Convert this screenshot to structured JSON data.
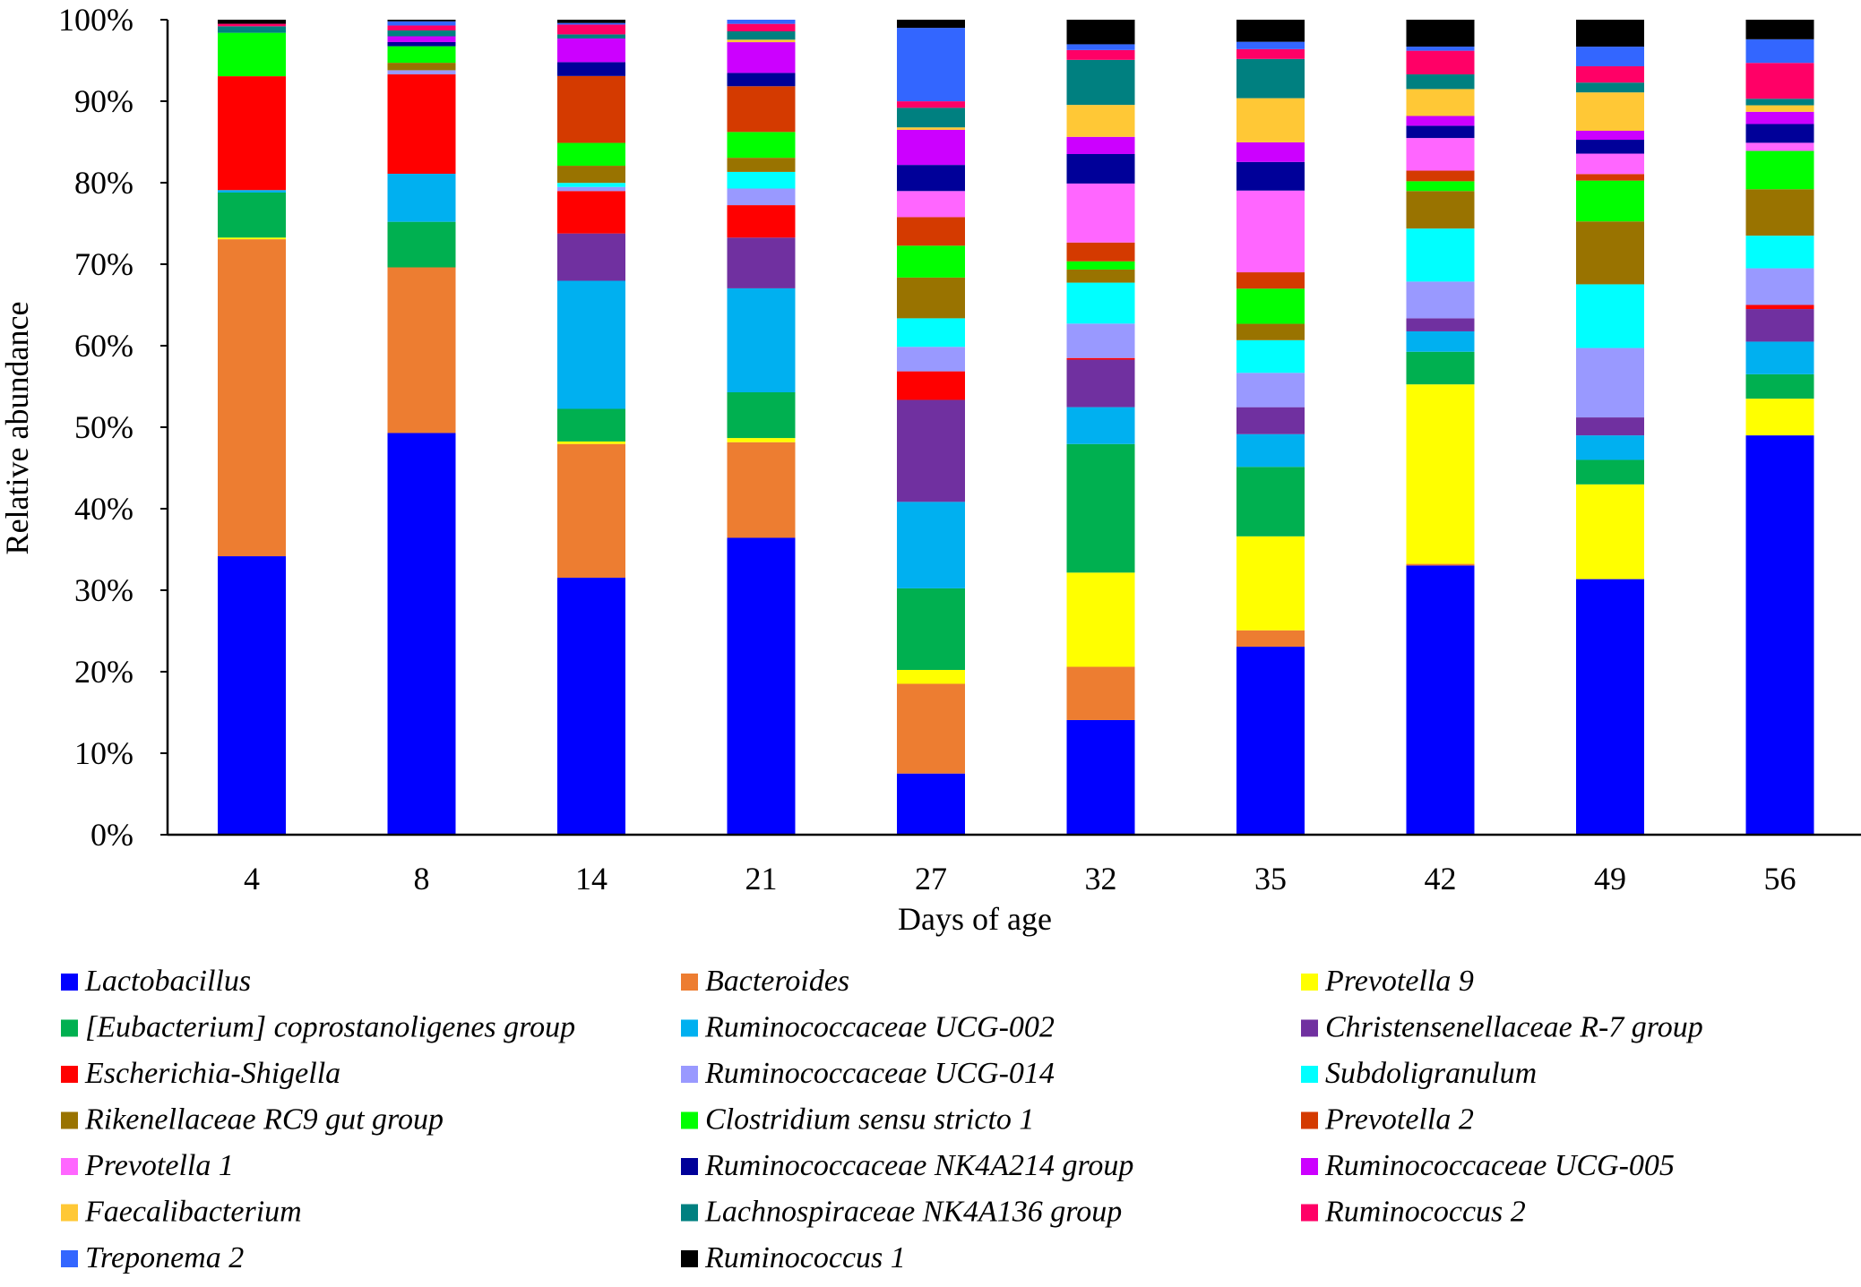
{
  "chart_data": {
    "type": "bar",
    "stacked": true,
    "title": "",
    "xlabel": "Days of age",
    "ylabel": "Relative abundance",
    "ylim": [
      0,
      100
    ],
    "yticks": [
      "0%",
      "10%",
      "20%",
      "30%",
      "40%",
      "50%",
      "60%",
      "70%",
      "80%",
      "90%",
      "100%"
    ],
    "categories": [
      "4",
      "8",
      "14",
      "21",
      "27",
      "32",
      "35",
      "42",
      "49",
      "56"
    ],
    "legend_position": "bottom",
    "series": [
      {
        "name": "Lactobacillus",
        "color": "#0000ff",
        "values": [
          34,
          48.5,
          31.5,
          35.7,
          7.5,
          14,
          23,
          33,
          31.3,
          49
        ]
      },
      {
        "name": "Bacteroides",
        "color": "#ed7d31",
        "values": [
          38.7,
          20,
          16.4,
          11.5,
          11,
          6.5,
          2,
          0.2,
          0,
          0
        ]
      },
      {
        "name": "Prevotella 9",
        "color": "#ffff00",
        "values": [
          0.2,
          0,
          0.3,
          0.5,
          1.7,
          11.5,
          11.5,
          22,
          11.6,
          4.5
        ]
      },
      {
        "name": "[Eubacterium] coprostanoligenes group",
        "color": "#00b050",
        "values": [
          5.5,
          5.5,
          4,
          5.5,
          10,
          15.7,
          8.5,
          4,
          3,
          3
        ]
      },
      {
        "name": "Ruminococcaceae UCG-002",
        "color": "#00b0f0",
        "values": [
          0.3,
          5.8,
          15.7,
          12.5,
          10.6,
          4.5,
          4,
          2.5,
          3,
          4
        ]
      },
      {
        "name": "Christensenellaceae R-7 group",
        "color": "#7030a0",
        "values": [
          0,
          0,
          5.8,
          6.1,
          12.5,
          5.8,
          3.3,
          1.6,
          2.2,
          4
        ]
      },
      {
        "name": "Escherichia-Shigella",
        "color": "#ff0000",
        "values": [
          13.9,
          12.0,
          5.2,
          3.9,
          3.5,
          0.2,
          0,
          0,
          0,
          0.5
        ]
      },
      {
        "name": "Ruminococcaceae UCG-014",
        "color": "#9999ff",
        "values": [
          0,
          0.5,
          0.5,
          2,
          3,
          4.2,
          4.2,
          4.5,
          8.5,
          4.5
        ]
      },
      {
        "name": "Subdoligranulum",
        "color": "#00ffff",
        "values": [
          0,
          0,
          0.5,
          2,
          3.5,
          5,
          4,
          6.5,
          7.8,
          4
        ]
      },
      {
        "name": "Rikenellaceae RC9 gut group",
        "color": "#997300",
        "values": [
          0,
          0.9,
          2.1,
          1.7,
          5,
          1.6,
          2,
          4.6,
          7.7,
          5.7
        ]
      },
      {
        "name": "Clostridium sensu stricto 1",
        "color": "#00ff00",
        "values": [
          5.3,
          2,
          2.8,
          3.1,
          3.9,
          1,
          4.3,
          1.2,
          5,
          4.7
        ]
      },
      {
        "name": "Prevotella 2",
        "color": "#d43a00",
        "values": [
          0,
          0,
          8.2,
          5.5,
          3.5,
          2.3,
          2,
          1.3,
          0.8,
          0
        ]
      },
      {
        "name": "Prevotella 1",
        "color": "#ff66ff",
        "values": [
          0,
          0,
          0,
          0,
          3.2,
          7.2,
          10,
          4,
          2.5,
          1
        ]
      },
      {
        "name": "Ruminococcaceae NK4A214 group",
        "color": "#000099",
        "values": [
          0,
          0.5,
          1.7,
          1.6,
          3.2,
          3.6,
          3.5,
          1.5,
          1.7,
          2.3
        ]
      },
      {
        "name": "Ruminococcaceae UCG-005",
        "color": "#cc00ff",
        "values": [
          0,
          0.7,
          2.9,
          3.7,
          4.3,
          2.1,
          2.4,
          1.2,
          1.1,
          1.5
        ]
      },
      {
        "name": "Faecalibacterium",
        "color": "#ffc836",
        "values": [
          0,
          0,
          0,
          0.3,
          0.3,
          3.9,
          5.4,
          3.3,
          4.7,
          0.8
        ]
      },
      {
        "name": "Lachnospiraceae NK4A136 group",
        "color": "#008080",
        "values": [
          0.8,
          0.7,
          0.5,
          1,
          2.4,
          5.5,
          4.8,
          1.8,
          1.2,
          0.8
        ]
      },
      {
        "name": "Ruminococcus 2",
        "color": "#ff0066",
        "values": [
          0.3,
          0.6,
          1.2,
          0.9,
          0.8,
          1.2,
          1.2,
          2.9,
          2,
          4.4
        ]
      },
      {
        "name": "Treponema 2",
        "color": "#3366ff",
        "values": [
          0,
          0.5,
          0.2,
          0.5,
          9,
          0.7,
          0.9,
          0.5,
          2.4,
          2.9
        ]
      },
      {
        "name": "Ruminococcus 1",
        "color": "#000000",
        "values": [
          0.5,
          0.2,
          0.4,
          0,
          1,
          3,
          2.7,
          3.3,
          3.3,
          2.4
        ]
      }
    ]
  }
}
